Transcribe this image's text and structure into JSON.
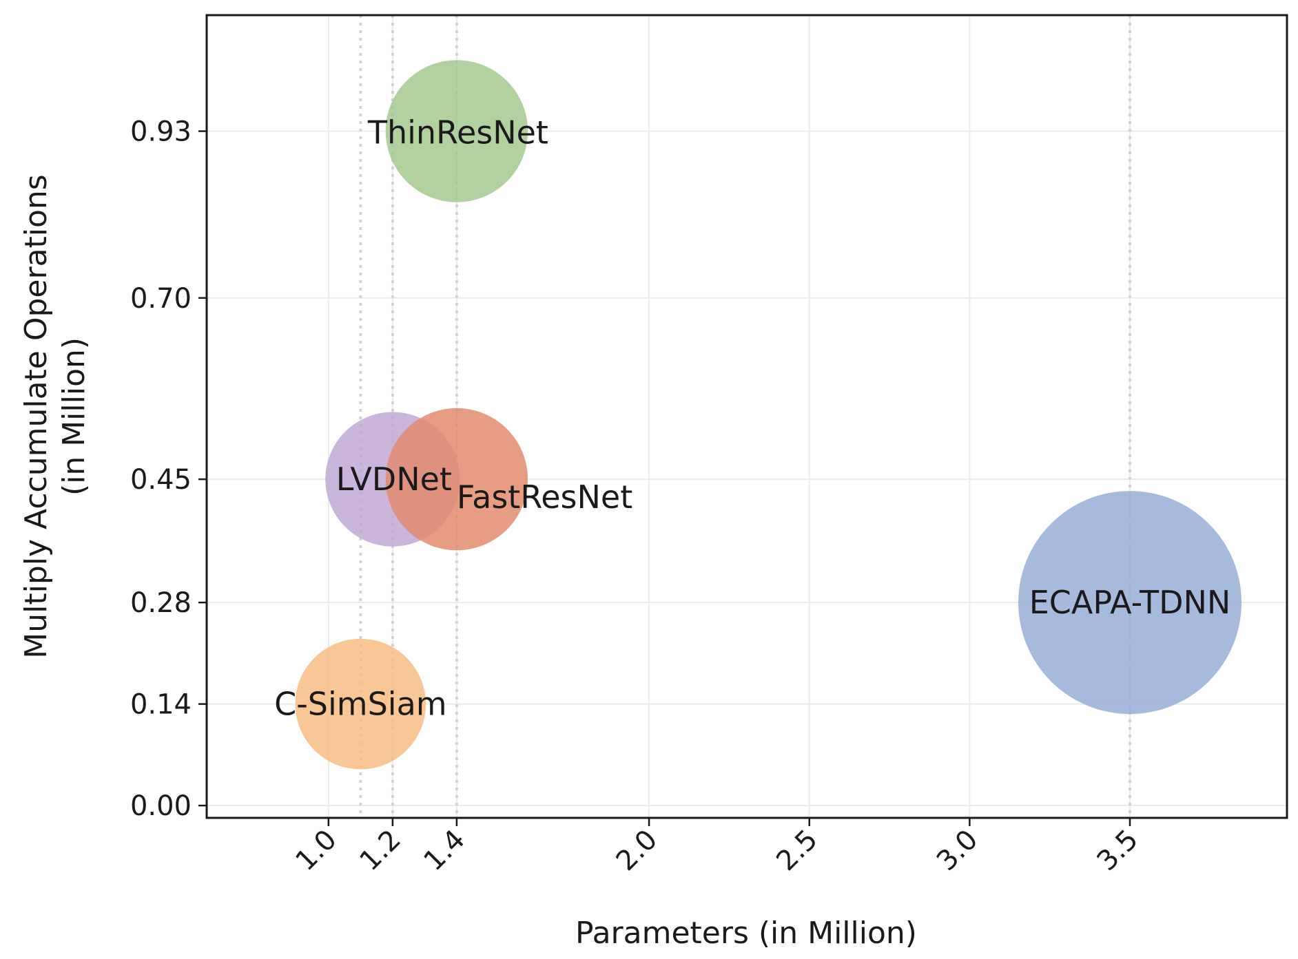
{
  "chart_data": {
    "type": "scatter",
    "title": "",
    "xlabel": "Parameters (in Million)",
    "ylabel_line1": "Multiply Accumulate Operations",
    "ylabel_line2": "(in Million)",
    "xlim": [
      0.62,
      3.99
    ],
    "ylim": [
      -0.017,
      1.09
    ],
    "x_ticks": [
      1.0,
      1.2,
      1.4,
      2.0,
      2.5,
      3.0,
      3.5
    ],
    "x_tick_labels": [
      "1.0",
      "1.2",
      "1.4",
      "2.0",
      "2.5",
      "3.0",
      "3.5"
    ],
    "y_ticks": [
      0.0,
      0.14,
      0.28,
      0.45,
      0.7,
      0.93
    ],
    "y_tick_labels": [
      "0.00",
      "0.14",
      "0.28",
      "0.45",
      "0.70",
      "0.93"
    ],
    "grid": true,
    "dotted_reference_x": [
      1.1,
      1.2,
      1.4,
      3.5
    ],
    "points": [
      {
        "name": "ThinResNet",
        "x": 1.4,
        "y": 0.93,
        "size": 1.4,
        "color": "#a3c98f"
      },
      {
        "name": "LVDNet",
        "x": 1.2,
        "y": 0.45,
        "size": 1.2,
        "color": "#bfa9d4"
      },
      {
        "name": "FastResNet",
        "x": 1.4,
        "y": 0.45,
        "size": 1.4,
        "color": "#e38b6e"
      },
      {
        "name": "ECAPA-TDNN",
        "x": 3.5,
        "y": 0.28,
        "size": 3.5,
        "color": "#97afd6"
      },
      {
        "name": "C-SimSiam",
        "x": 1.1,
        "y": 0.14,
        "size": 1.1,
        "color": "#f8bc84"
      }
    ]
  }
}
